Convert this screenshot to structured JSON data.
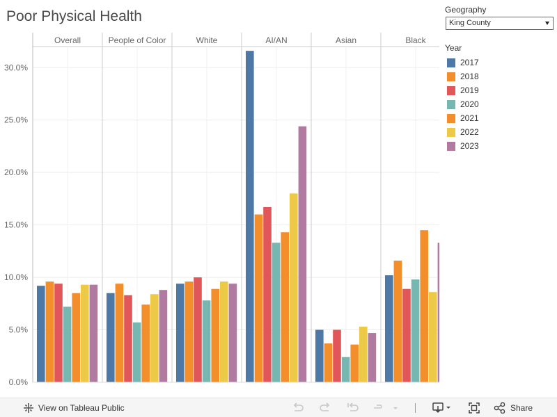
{
  "header": {
    "title": "Poor Physical Health"
  },
  "filters": {
    "geography_label": "Geography",
    "geography_value": "King County"
  },
  "legend": {
    "title": "Year",
    "items": [
      {
        "label": "2017",
        "color": "#4e79a7"
      },
      {
        "label": "2018",
        "color": "#f28e2b"
      },
      {
        "label": "2019",
        "color": "#e15759"
      },
      {
        "label": "2020",
        "color": "#76b7b2"
      },
      {
        "label": "2021",
        "color": "#f28e2b"
      },
      {
        "label": "2022",
        "color": "#edc948"
      },
      {
        "label": "2023",
        "color": "#b07aa1"
      }
    ]
  },
  "footer": {
    "view_label": "View on Tableau Public",
    "share_label": "Share"
  },
  "chart_data": {
    "type": "bar",
    "title": "Poor Physical Health",
    "xlabel": "",
    "ylabel": "",
    "ylim": [
      0,
      0.33
    ],
    "y_ticks": [
      0,
      0.05,
      0.1,
      0.15,
      0.2,
      0.25,
      0.3
    ],
    "y_tick_labels": [
      "0.0%",
      "5.0%",
      "10.0%",
      "15.0%",
      "20.0%",
      "25.0%",
      "30.0%"
    ],
    "categories": [
      "Overall",
      "People of Color",
      "White",
      "AI/AN",
      "Asian",
      "Black"
    ],
    "series": [
      {
        "name": "2017",
        "values": [
          0.092,
          0.085,
          0.094,
          0.316,
          0.05,
          0.102
        ]
      },
      {
        "name": "2018",
        "values": [
          0.096,
          0.094,
          0.096,
          0.16,
          0.037,
          0.116
        ]
      },
      {
        "name": "2019",
        "values": [
          0.094,
          0.083,
          0.1,
          0.167,
          0.05,
          0.089
        ]
      },
      {
        "name": "2020",
        "values": [
          0.072,
          0.057,
          0.078,
          0.133,
          0.024,
          0.098
        ]
      },
      {
        "name": "2021",
        "values": [
          0.085,
          0.074,
          0.089,
          0.143,
          0.036,
          0.145
        ]
      },
      {
        "name": "2022",
        "values": [
          0.093,
          0.084,
          0.096,
          0.18,
          0.053,
          0.086
        ]
      },
      {
        "name": "2023",
        "values": [
          0.093,
          0.088,
          0.094,
          0.244,
          0.047,
          0.133
        ]
      }
    ]
  }
}
